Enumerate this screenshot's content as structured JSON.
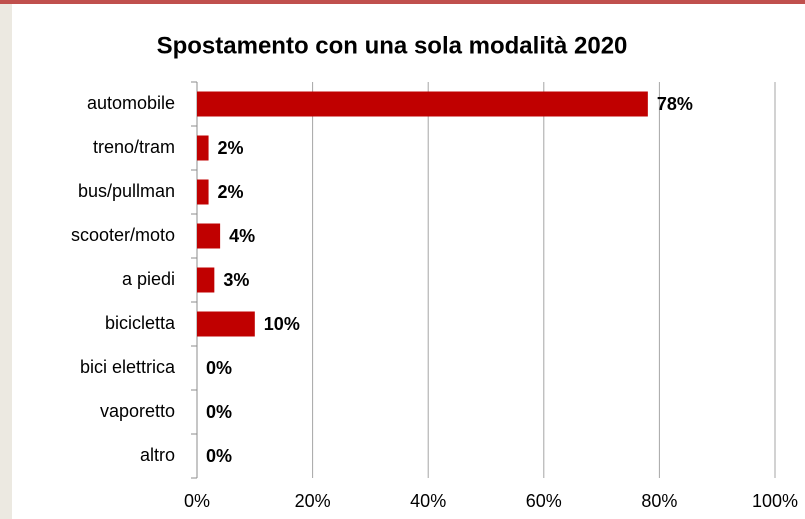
{
  "chart_data": {
    "type": "bar",
    "orientation": "horizontal",
    "title": "Spostamento con una sola modalità 2020",
    "categories": [
      "automobile",
      "treno/tram",
      "bus/pullman",
      "scooter/moto",
      "a piedi",
      "bicicletta",
      "bici elettrica",
      "vaporetto",
      "altro"
    ],
    "values": [
      78,
      2,
      2,
      4,
      3,
      10,
      0,
      0,
      0
    ],
    "value_labels": [
      "78%",
      "2%",
      "2%",
      "4%",
      "3%",
      "10%",
      "0%",
      "0%",
      "0%"
    ],
    "color": "#c00000",
    "xlim": [
      0,
      100
    ],
    "xticks": [
      {
        "value": 0,
        "label": "0%"
      },
      {
        "value": 20,
        "label": "20%"
      },
      {
        "value": 40,
        "label": "40%"
      },
      {
        "value": 60,
        "label": "60%"
      },
      {
        "value": 80,
        "label": "80%"
      },
      {
        "value": 100,
        "label": "100%"
      }
    ],
    "grid": true
  }
}
